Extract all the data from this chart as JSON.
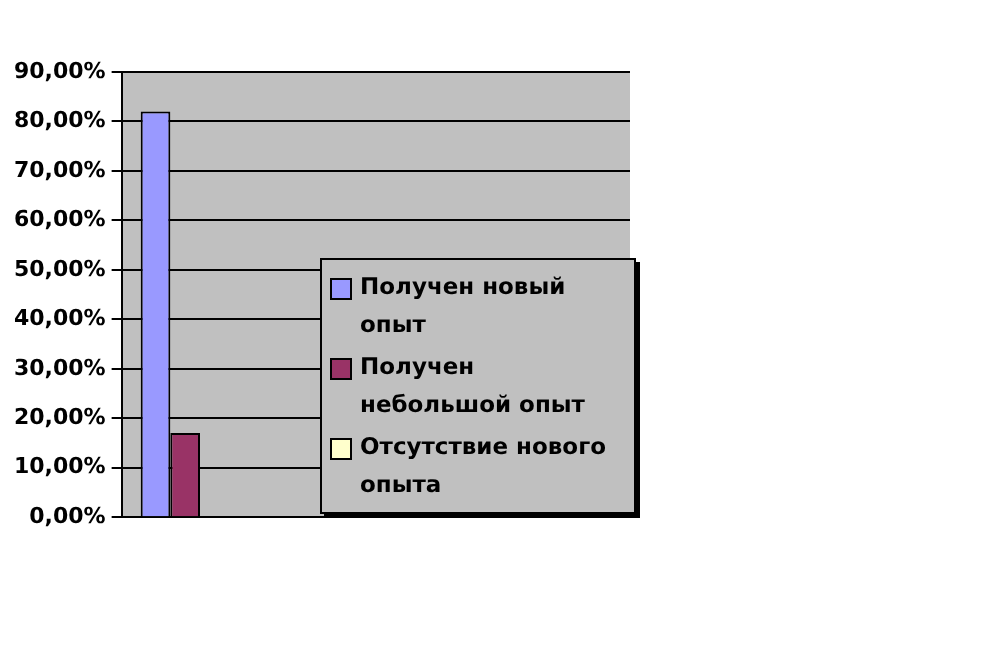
{
  "chart_data": {
    "type": "bar",
    "categories": [
      null,
      null,
      null,
      null
    ],
    "series": [
      {
        "name": "Получен новый опыт",
        "color": "#9999ff",
        "values": [
          82,
          null,
          null,
          null
        ]
      },
      {
        "name": "Получен небольшой опыт",
        "color": "#993366",
        "values": [
          17,
          null,
          null,
          null
        ]
      },
      {
        "name": "Отсутствие нового опыта",
        "color": "#ffffcc",
        "values": [
          0,
          null,
          null,
          null
        ]
      }
    ],
    "ylim": [
      0,
      90
    ],
    "yticks": [
      {
        "value": 0,
        "label": "0,00%"
      },
      {
        "value": 10,
        "label": "10,00%"
      },
      {
        "value": 20,
        "label": "20,00%"
      },
      {
        "value": 30,
        "label": "30,00%"
      },
      {
        "value": 40,
        "label": "40,00%"
      },
      {
        "value": 50,
        "label": "50,00%"
      },
      {
        "value": 60,
        "label": "60,00%"
      },
      {
        "value": 70,
        "label": "70,00%"
      },
      {
        "value": 80,
        "label": "80,00%"
      },
      {
        "value": 90,
        "label": "90,00%"
      }
    ],
    "grid": "y",
    "legend": "right"
  }
}
